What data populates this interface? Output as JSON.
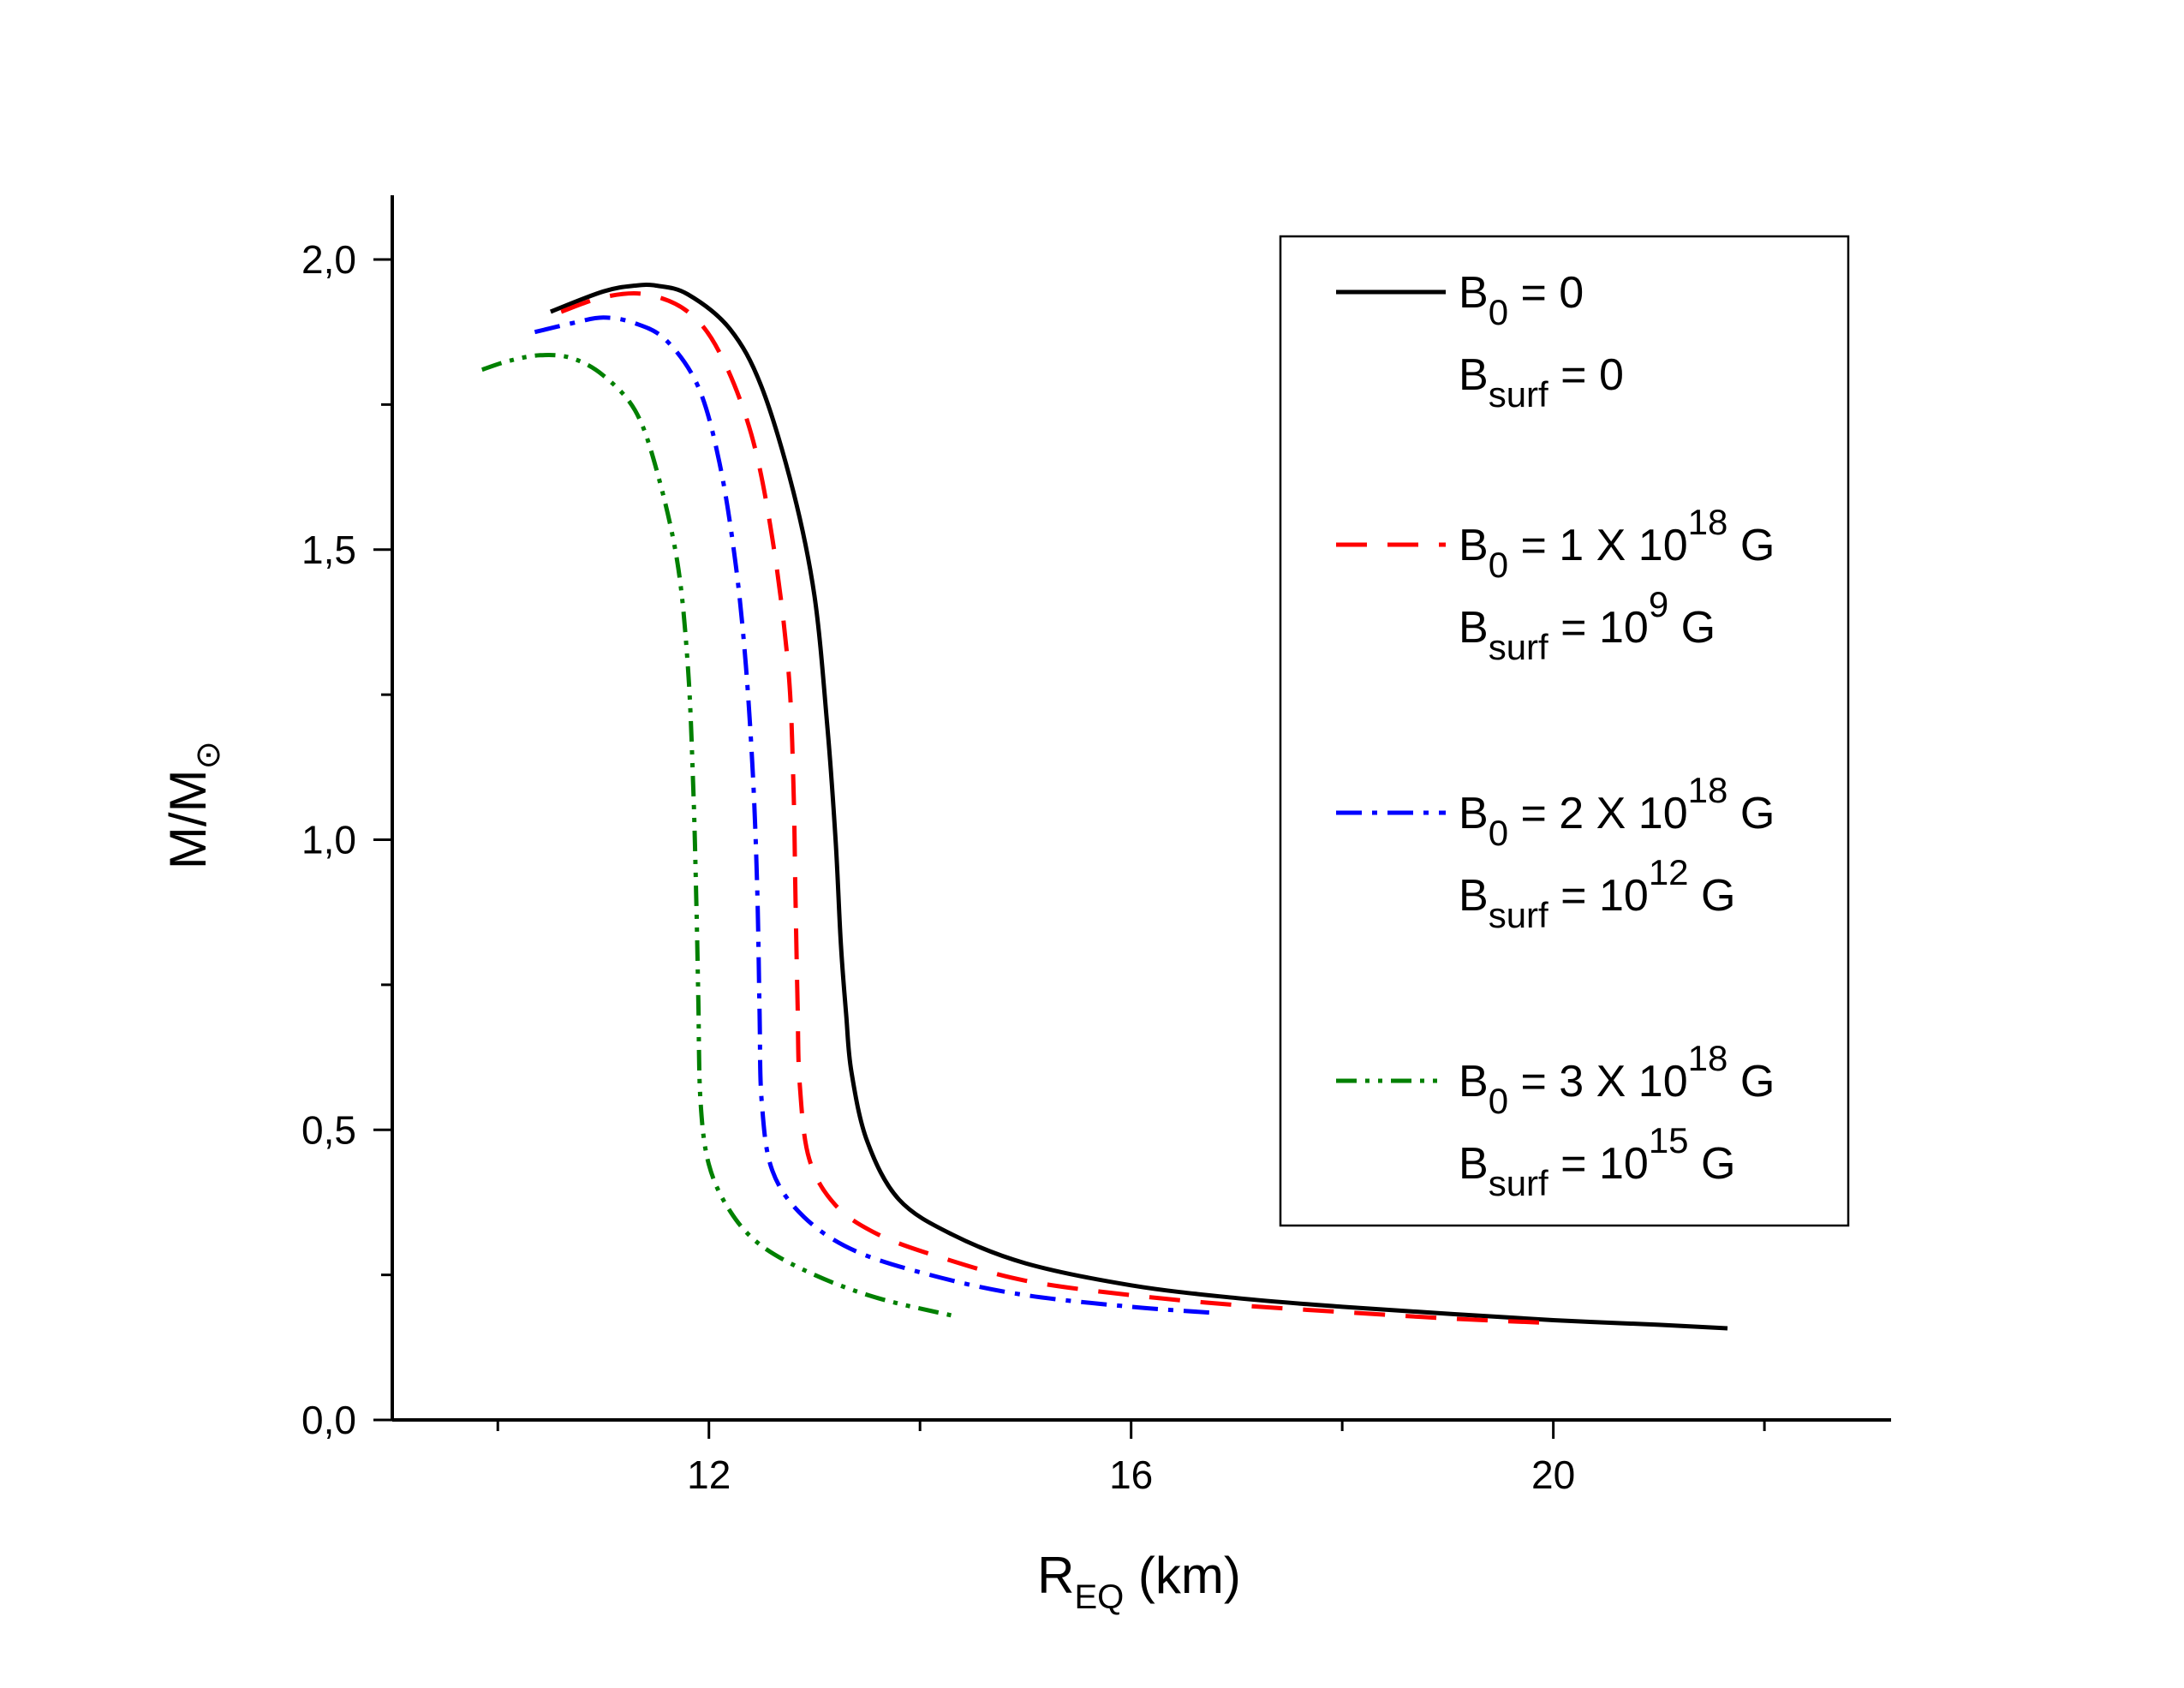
{
  "chart_data": {
    "type": "line",
    "xlabel": {
      "main": "R",
      "sub": "EQ",
      "rest": " (km)"
    },
    "ylabel": {
      "main": "M/M",
      "sub": "⊙"
    },
    "xlim": [
      9.0,
      23.2
    ],
    "ylim": [
      0.0,
      2.1
    ],
    "xticks": [
      {
        "value": 12,
        "label": "12"
      },
      {
        "value": 16,
        "label": "16"
      },
      {
        "value": 20,
        "label": "20"
      }
    ],
    "xticks_minor": [
      10,
      14,
      18,
      22
    ],
    "yticks": [
      {
        "value": 0.0,
        "label": "0,0"
      },
      {
        "value": 0.5,
        "label": "0,5"
      },
      {
        "value": 1.0,
        "label": "1,0"
      },
      {
        "value": 1.5,
        "label": "1,5"
      },
      {
        "value": 2.0,
        "label": "2,0"
      }
    ],
    "yticks_minor": [
      0.25,
      0.75,
      1.25,
      1.75
    ],
    "legend_position": "top-right",
    "series": [
      {
        "name": "B0 = 0",
        "legend": {
          "l1": {
            "pre": "B",
            "sub": "0",
            "mid": " = 0",
            "sup": "",
            "post": ""
          },
          "l2": {
            "pre": "B",
            "sub": "surf",
            "mid": " = 0",
            "sup": "",
            "post": ""
          }
        },
        "color": "#000000",
        "dash": "",
        "x": [
          10.5,
          11.0,
          11.3,
          11.5,
          11.8,
          12.2,
          12.5,
          12.8,
          13.0,
          13.12,
          13.2,
          13.25,
          13.3,
          13.35,
          13.5,
          13.8,
          14.3,
          15.0,
          16.0,
          17.0,
          18.0,
          19.0,
          20.0,
          21.0,
          21.65
        ],
        "y": [
          1.91,
          1.945,
          1.955,
          1.955,
          1.94,
          1.88,
          1.78,
          1.6,
          1.42,
          1.2,
          1.0,
          0.82,
          0.7,
          0.6,
          0.48,
          0.38,
          0.32,
          0.27,
          0.232,
          0.21,
          0.195,
          0.183,
          0.172,
          0.164,
          0.158
        ]
      },
      {
        "name": "B0 = 1 X 10^18 G",
        "legend": {
          "l1": {
            "pre": "B",
            "sub": "0",
            "mid": " = 1 X 10",
            "sup": "18",
            "post": " G"
          },
          "l2": {
            "pre": "B",
            "sub": "surf",
            "mid": " = 10",
            "sup": "9",
            "post": " G"
          }
        },
        "color": "#ff0000",
        "dash": "36,24",
        "x": [
          10.6,
          11.0,
          11.4,
          11.8,
          12.1,
          12.4,
          12.6,
          12.75,
          12.8,
          12.82,
          12.84,
          12.86,
          12.95,
          13.2,
          13.6,
          14.2,
          15.0,
          16.0,
          17.0,
          18.0,
          19.0,
          20.0
        ],
        "y": [
          1.91,
          1.935,
          1.94,
          1.91,
          1.84,
          1.7,
          1.52,
          1.3,
          1.1,
          0.9,
          0.72,
          0.58,
          0.45,
          0.37,
          0.32,
          0.28,
          0.24,
          0.215,
          0.198,
          0.186,
          0.175,
          0.167
        ]
      },
      {
        "name": "B0 = 2 X 10^18 G",
        "legend": {
          "l1": {
            "pre": "B",
            "sub": "0",
            "mid": " = 2 X 10",
            "sup": "18",
            "post": " G"
          },
          "l2": {
            "pre": "B",
            "sub": "surf",
            "mid": " = 10",
            "sup": "12",
            "post": " G"
          }
        },
        "color": "#0000ff",
        "dash": "30,12,6,12",
        "x": [
          10.35,
          10.7,
          11.0,
          11.3,
          11.6,
          11.9,
          12.1,
          12.25,
          12.35,
          12.42,
          12.46,
          12.48,
          12.5,
          12.6,
          12.9,
          13.4,
          14.2,
          15.0,
          16.0,
          16.75
        ],
        "y": [
          1.875,
          1.89,
          1.9,
          1.89,
          1.86,
          1.78,
          1.65,
          1.48,
          1.3,
          1.1,
          0.9,
          0.7,
          0.55,
          0.43,
          0.35,
          0.29,
          0.245,
          0.215,
          0.195,
          0.185
        ]
      },
      {
        "name": "B0 = 3 X 10^18 G",
        "legend": {
          "l1": {
            "pre": "B",
            "sub": "0",
            "mid": " = 3 X 10",
            "sup": "18",
            "post": " G"
          },
          "l2": {
            "pre": "B",
            "sub": "surf",
            "mid": " = 10",
            "sup": "15",
            "post": " G"
          }
        },
        "color": "#008000",
        "dash": "24,10,5,10,5,10",
        "x": [
          9.85,
          10.1,
          10.4,
          10.7,
          11.0,
          11.3,
          11.5,
          11.7,
          11.8,
          11.85,
          11.88,
          11.9,
          11.92,
          12.0,
          12.2,
          12.5,
          13.0,
          13.6,
          14.3
        ],
        "y": [
          1.81,
          1.825,
          1.835,
          1.83,
          1.8,
          1.74,
          1.64,
          1.48,
          1.3,
          1.1,
          0.9,
          0.72,
          0.55,
          0.44,
          0.36,
          0.3,
          0.25,
          0.21,
          0.18
        ]
      }
    ]
  }
}
